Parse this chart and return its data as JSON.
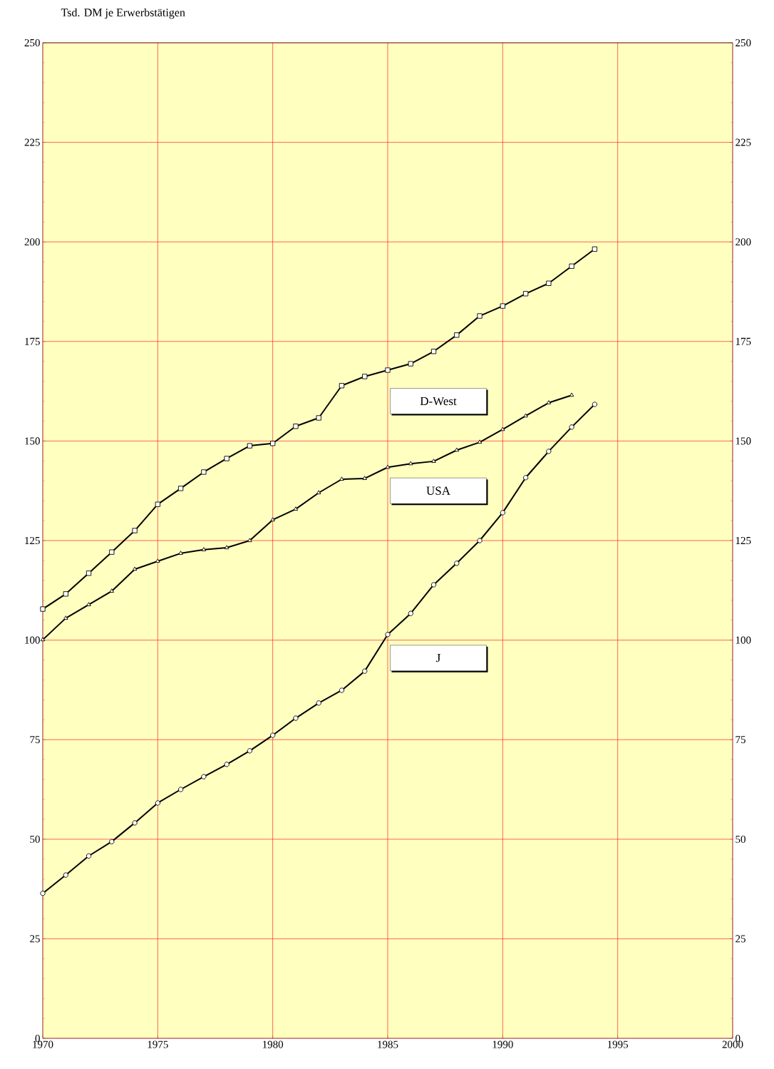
{
  "chart_data": {
    "type": "line",
    "title": "Tsd. DM je Erwerbstätigen",
    "x": [
      1970,
      1971,
      1972,
      1973,
      1974,
      1975,
      1976,
      1977,
      1978,
      1979,
      1980,
      1981,
      1982,
      1983,
      1984,
      1985,
      1986,
      1987,
      1988,
      1989,
      1990,
      1991,
      1992,
      1993,
      1994
    ],
    "series": [
      {
        "name": "D-West",
        "color": "#000000",
        "marker": "square",
        "values": [
          107.8,
          111.6,
          116.8,
          122.1,
          127.5,
          134.1,
          138.1,
          142.2,
          145.6,
          148.8,
          149.4,
          153.7,
          155.8,
          163.9,
          166.2,
          167.8,
          169.4,
          172.5,
          176.6,
          181.4,
          183.9,
          187.0,
          189.6,
          193.9,
          198.2
        ]
      },
      {
        "name": "USA",
        "color": "#000000",
        "marker": "triangle",
        "values": [
          100.1,
          105.5,
          108.9,
          112.3,
          117.8,
          119.8,
          121.8,
          122.7,
          123.2,
          125.0,
          130.2,
          132.9,
          137.0,
          140.4,
          140.6,
          143.4,
          144.3,
          144.9,
          147.7,
          149.7,
          152.9,
          156.3,
          159.6,
          161.5,
          null
        ]
      },
      {
        "name": "J",
        "color": "#000000",
        "marker": "circle",
        "values": [
          36.4,
          41.0,
          45.8,
          49.4,
          54.1,
          59.1,
          62.5,
          65.7,
          68.8,
          72.2,
          76.1,
          80.4,
          84.2,
          87.4,
          92.2,
          101.4,
          106.7,
          113.9,
          119.3,
          125.0,
          132.0,
          140.8,
          147.4,
          153.5,
          159.2
        ]
      }
    ],
    "xlim": [
      1970,
      2000
    ],
    "xticks": [
      1970,
      1975,
      1980,
      1985,
      1990,
      1995,
      2000
    ],
    "ylim": [
      0,
      250
    ],
    "yticks": [
      0,
      25,
      50,
      75,
      100,
      125,
      150,
      175,
      200,
      225,
      250
    ],
    "y2lim": [
      0,
      250
    ],
    "y2ticks": [
      0,
      25,
      50,
      75,
      100,
      125,
      150,
      175,
      200,
      225,
      250
    ],
    "grid": true,
    "line_style": "solid",
    "legend": false
  }
}
